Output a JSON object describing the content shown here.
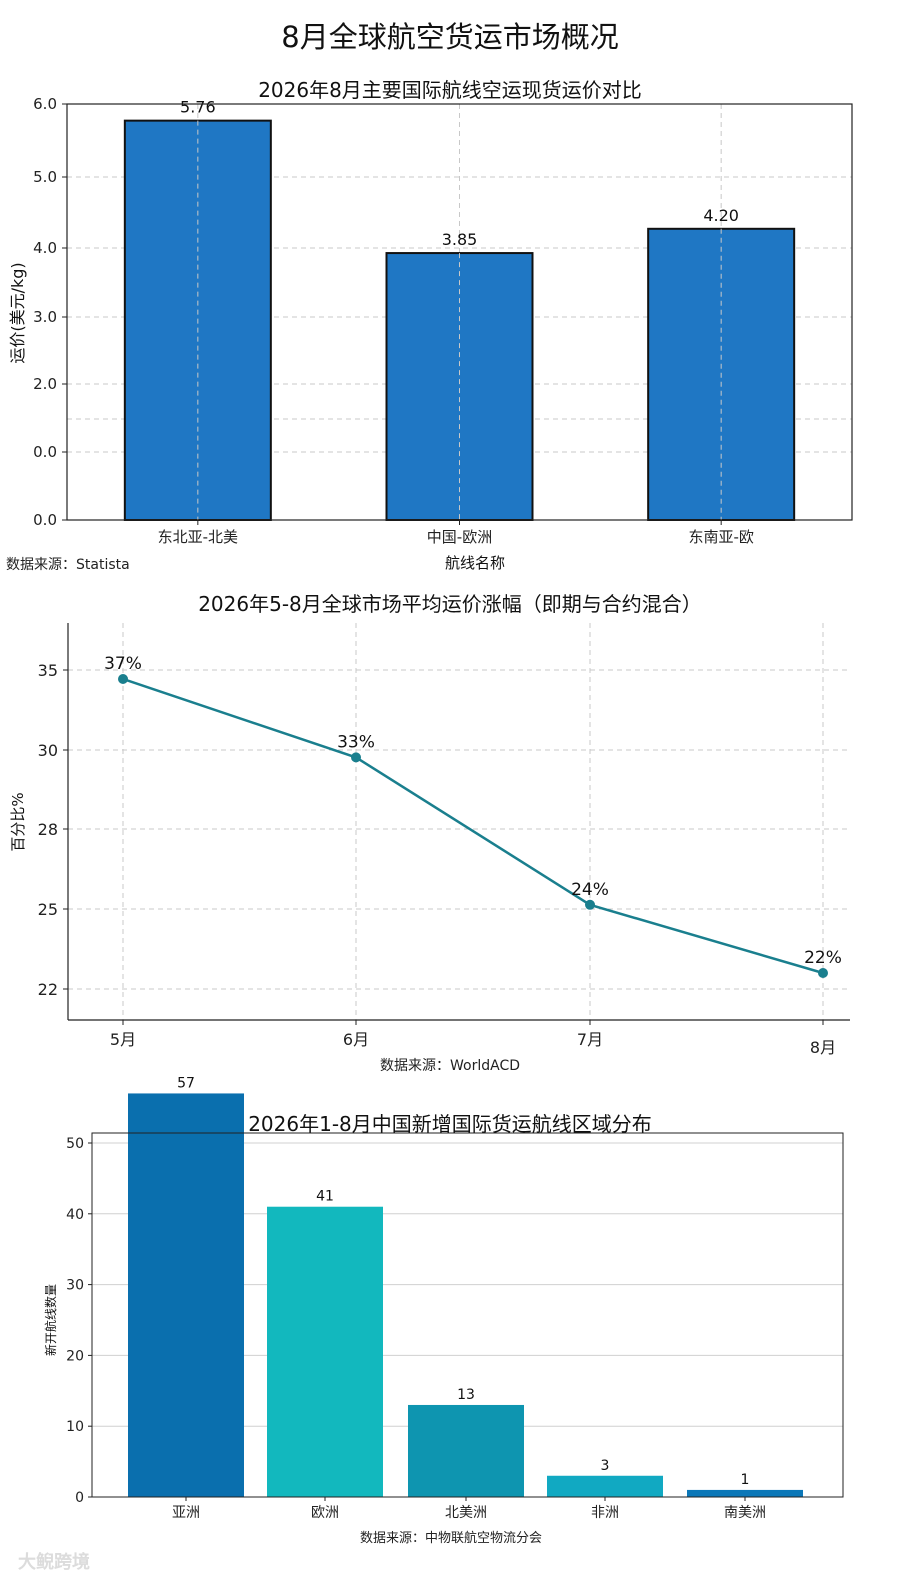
{
  "page": {
    "title": "8月全球航空货运市场概况",
    "watermark": "大鲵跨境"
  },
  "chart_data": [
    {
      "type": "bar",
      "title": "2026年8月主要国际航线空运现货运价对比",
      "xlabel": "航线名称",
      "ylabel": "运价(美元/kg)",
      "categories": [
        "东北亚-北美",
        "中国-欧洲",
        "东南亚-欧"
      ],
      "values": [
        5.76,
        3.85,
        4.2
      ],
      "value_labels": [
        "5.76",
        "3.85",
        "4.20"
      ],
      "y_tick_labels": [
        "0.0",
        "0.0",
        "2.0",
        "3.0",
        "4.0",
        "5.0",
        "6.0"
      ],
      "ylim": [
        0,
        6
      ],
      "grid": true,
      "bar_color": "#1f77c4",
      "source": "数据来源：Statista"
    },
    {
      "type": "line",
      "title": "2026年5-8月全球市场平均运价涨幅（即期与合约混合）",
      "xlabel": "",
      "ylabel": "百分比%",
      "categories": [
        "5月",
        "6月",
        "7月",
        "8月"
      ],
      "values": [
        37,
        33,
        24,
        22
      ],
      "value_labels": [
        "37%",
        "33%",
        "24%",
        "22%"
      ],
      "y_tick_labels": [
        "22",
        "25",
        "28",
        "30",
        "35"
      ],
      "grid": true,
      "line_color": "#1a7f8e",
      "source": "数据来源：WorldACD"
    },
    {
      "type": "bar",
      "title": "2026年1-8月中国新增国际货运航线区域分布",
      "xlabel": "",
      "ylabel": "新开航线数量",
      "categories": [
        "亚洲",
        "欧洲",
        "北美洲",
        "非洲",
        "南美洲"
      ],
      "values": [
        57,
        41,
        13,
        3,
        1
      ],
      "value_labels": [
        "57",
        "41",
        "13",
        "3",
        "1"
      ],
      "y_tick_labels": [
        "0",
        "10",
        "20",
        "30",
        "40",
        "50"
      ],
      "ylim": [
        0,
        60
      ],
      "grid": true,
      "bar_colors": [
        "#0a6fae",
        "#12b8be",
        "#0e95b0",
        "#11a9c2",
        "#0b77b8"
      ],
      "source": "数据来源：中物联航空物流分会"
    }
  ]
}
